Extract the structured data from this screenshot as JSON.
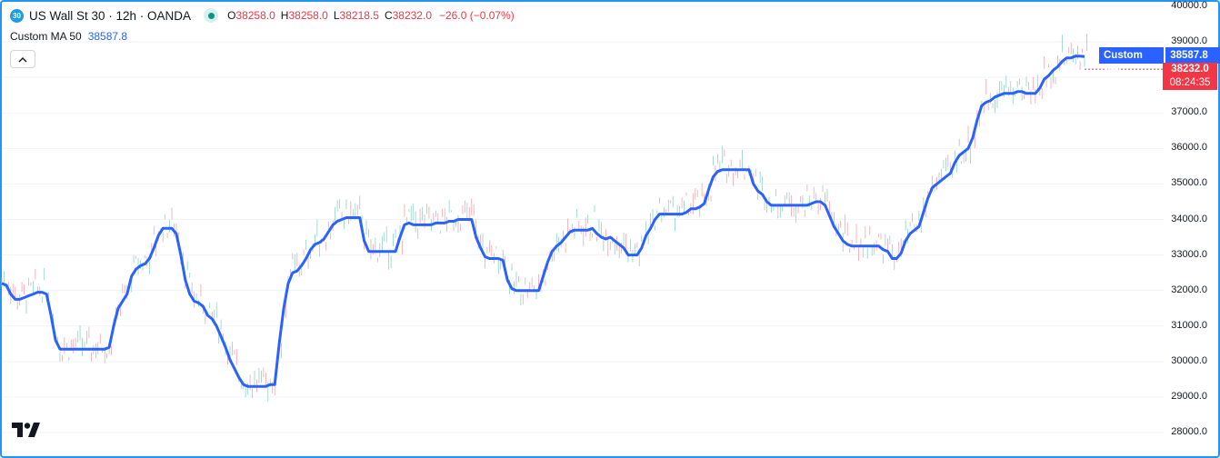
{
  "header": {
    "symbol_badge": "30",
    "title": "US Wall St 30 · 12h · OANDA",
    "ohlc": [
      {
        "key": "O",
        "value": "38258.0"
      },
      {
        "key": "H",
        "value": "38258.0"
      },
      {
        "key": "L",
        "value": "38218.5"
      },
      {
        "key": "C",
        "value": "38232.0"
      }
    ],
    "change": "−26.0 (−0.07%)"
  },
  "indicator": {
    "name": "Custom MA 50",
    "value": "38587.8"
  },
  "tags": {
    "ma_name": "Custom MA",
    "ma_value": "38587.8",
    "price": "38232.0",
    "countdown": "08:24:35"
  },
  "colors": {
    "frame": "#2196f3",
    "ma_line": "#2962ff",
    "up": "#089981",
    "down": "#f23645",
    "grid": "#f0f3fa"
  },
  "chart_data": {
    "type": "line",
    "title": "US Wall St 30 · 12h · OANDA",
    "ylim": [
      27700,
      40000
    ],
    "yticks": [
      "28000.0",
      "29000.0",
      "30000.0",
      "31000.0",
      "32000.0",
      "33000.0",
      "34000.0",
      "35000.0",
      "36000.0",
      "37000.0",
      "38000.0",
      "39000.0",
      "40000.0"
    ],
    "series": [
      {
        "name": "Custom MA",
        "values": [
          32200,
          32150,
          31900,
          31750,
          31750,
          31800,
          31850,
          31900,
          31950,
          31950,
          31900,
          31300,
          30600,
          30350,
          30350,
          30350,
          30350,
          30350,
          30350,
          30350,
          30350,
          30350,
          30350,
          30350,
          30400,
          31000,
          31500,
          31700,
          31900,
          32400,
          32600,
          32700,
          32750,
          32900,
          33200,
          33550,
          33750,
          33750,
          33750,
          33600,
          33000,
          32300,
          31900,
          31700,
          31650,
          31550,
          31300,
          31200,
          31000,
          30700,
          30400,
          30050,
          29800,
          29550,
          29350,
          29300,
          29300,
          29300,
          29300,
          29300,
          29350,
          29350,
          30500,
          31500,
          32200,
          32500,
          32550,
          32700,
          32900,
          33150,
          33300,
          33350,
          33450,
          33650,
          33850,
          33950,
          34000,
          34050,
          34050,
          34050,
          34050,
          33400,
          33100,
          33100,
          33100,
          33100,
          33100,
          33100,
          33100,
          33500,
          33850,
          33900,
          33850,
          33850,
          33850,
          33850,
          33850,
          33900,
          33900,
          33900,
          33950,
          33950,
          34000,
          34000,
          34000,
          34000,
          33500,
          33200,
          32950,
          32900,
          32900,
          32900,
          32850,
          32300,
          32050,
          32000,
          32000,
          32000,
          32000,
          32000,
          32000,
          32400,
          32800,
          33100,
          33250,
          33350,
          33500,
          33650,
          33700,
          33700,
          33700,
          33700,
          33750,
          33600,
          33500,
          33450,
          33500,
          33400,
          33300,
          33200,
          33000,
          33000,
          33000,
          33200,
          33550,
          33750,
          34000,
          34150,
          34150,
          34150,
          34150,
          34150,
          34150,
          34200,
          34300,
          34300,
          34350,
          34450,
          34850,
          35200,
          35350,
          35400,
          35400,
          35400,
          35400,
          35400,
          35400,
          35400,
          35000,
          34800,
          34700,
          34500,
          34400,
          34400,
          34400,
          34400,
          34400,
          34400,
          34400,
          34400,
          34400,
          34450,
          34500,
          34500,
          34400,
          34100,
          33800,
          33600,
          33400,
          33300,
          33250,
          33250,
          33250,
          33250,
          33250,
          33250,
          33250,
          33150,
          33100,
          32900,
          32900,
          33050,
          33400,
          33600,
          33700,
          33800,
          34200,
          34600,
          34900,
          35000,
          35100,
          35200,
          35300,
          35600,
          35800,
          35900,
          36000,
          36300,
          36800,
          37200,
          37300,
          37350,
          37450,
          37500,
          37550,
          37550,
          37550,
          37600,
          37600,
          37550,
          37550,
          37550,
          37700,
          37950,
          38050,
          38200,
          38300,
          38450,
          38550,
          38550,
          38600,
          38600,
          38587.8
        ]
      }
    ],
    "last_price": 38232.0,
    "last_ma": 38587.8,
    "grid": true,
    "legend_position": "top-left"
  }
}
